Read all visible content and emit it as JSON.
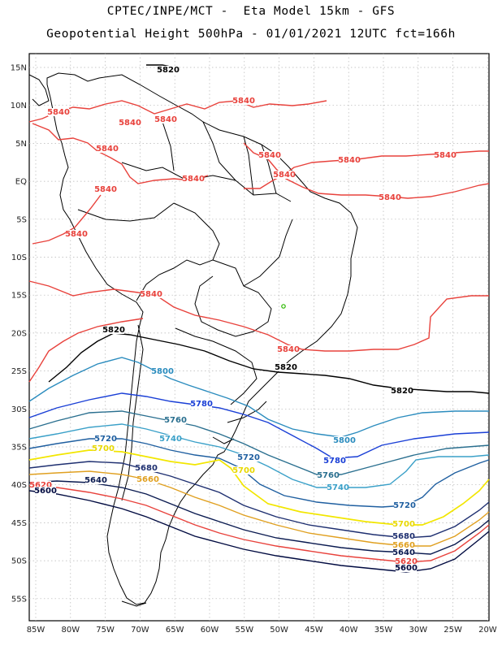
{
  "title_line1": "CPTEC/INPE/MCT -  Eta Model 15km - GFS",
  "title_line2": "Geopotential Height 500hPa - 01/01/2021 12UTC fct=166h",
  "lat_labels": [
    "15N",
    "10N",
    "5N",
    "EQ",
    "5S",
    "10S",
    "15S",
    "20S",
    "25S",
    "30S",
    "35S",
    "40S",
    "45S",
    "50S",
    "55S"
  ],
  "lon_labels": [
    "85W",
    "80W",
    "75W",
    "70W",
    "65W",
    "60W",
    "55W",
    "50W",
    "45W",
    "40W",
    "35W",
    "30W",
    "25W",
    "20W"
  ],
  "contour_colors": {
    "5840": "#e8423c",
    "5820": "#000000",
    "5800": "#2b8cbe",
    "5780": "#1a3fd6",
    "5760": "#2a6f8f",
    "5740": "#3aa0c8",
    "5720": "#1f5fa0",
    "5700": "#f2e600",
    "5680": "#1e2f70",
    "5660": "#e0a020",
    "5640": "#0a1a50",
    "5620": "#e8423c",
    "5600": "#000a40"
  },
  "contour_labels": [
    {
      "text": "5820",
      "color": "#000000"
    },
    {
      "text": "5840",
      "color": "#e8423c"
    },
    {
      "text": "5840",
      "color": "#e8423c"
    },
    {
      "text": "5840",
      "color": "#e8423c"
    },
    {
      "text": "5840",
      "color": "#e8423c"
    },
    {
      "text": "5840",
      "color": "#e8423c"
    },
    {
      "text": "5840",
      "color": "#e8423c"
    },
    {
      "text": "5840",
      "color": "#e8423c"
    },
    {
      "text": "5840",
      "color": "#e8423c"
    },
    {
      "text": "5840",
      "color": "#e8423c"
    },
    {
      "text": "5840",
      "color": "#e8423c"
    },
    {
      "text": "5840",
      "color": "#e8423c"
    },
    {
      "text": "5840",
      "color": "#e8423c"
    },
    {
      "text": "5840",
      "color": "#e8423c"
    },
    {
      "text": "5840",
      "color": "#e8423c"
    },
    {
      "text": "5820",
      "color": "#000000"
    },
    {
      "text": "5840",
      "color": "#e8423c"
    },
    {
      "text": "5820",
      "color": "#000000"
    },
    {
      "text": "5820",
      "color": "#000000"
    },
    {
      "text": "5800",
      "color": "#2b8cbe"
    },
    {
      "text": "5780",
      "color": "#1a3fd6"
    },
    {
      "text": "5760",
      "color": "#2a6f8f"
    },
    {
      "text": "5740",
      "color": "#3aa0c8"
    },
    {
      "text": "5720",
      "color": "#1f5fa0"
    },
    {
      "text": "5700",
      "color": "#f2e600"
    },
    {
      "text": "5680",
      "color": "#1e2f70"
    },
    {
      "text": "5660",
      "color": "#e0a020"
    },
    {
      "text": "5640",
      "color": "#0a1a50"
    },
    {
      "text": "5620",
      "color": "#e8423c"
    },
    {
      "text": "5600",
      "color": "#000a40"
    },
    {
      "text": "5720",
      "color": "#1f5fa0"
    },
    {
      "text": "5700",
      "color": "#f2e600"
    },
    {
      "text": "5800",
      "color": "#2b8cbe"
    },
    {
      "text": "5780",
      "color": "#1a3fd6"
    },
    {
      "text": "5760",
      "color": "#2a6f8f"
    },
    {
      "text": "5740",
      "color": "#3aa0c8"
    },
    {
      "text": "5720",
      "color": "#1f5fa0"
    },
    {
      "text": "5700",
      "color": "#f2e600"
    },
    {
      "text": "5680",
      "color": "#1e2f70"
    },
    {
      "text": "5660",
      "color": "#e0a020"
    },
    {
      "text": "5640",
      "color": "#0a1a50"
    },
    {
      "text": "5620",
      "color": "#e8423c"
    },
    {
      "text": "5600",
      "color": "#000a40"
    }
  ]
}
